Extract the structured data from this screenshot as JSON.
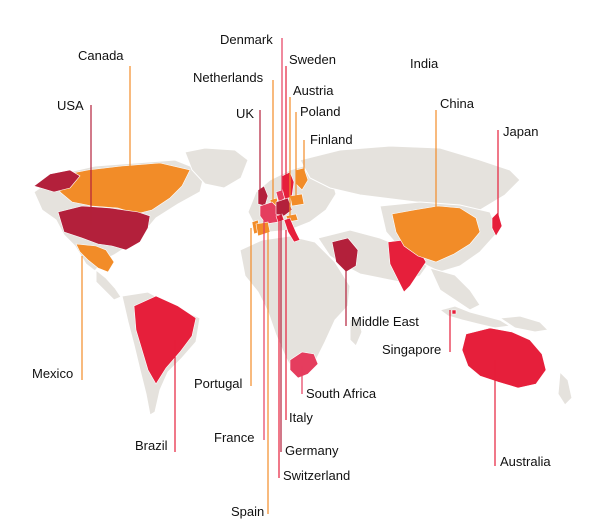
{
  "colors": {
    "background": "#ffffff",
    "land": "#e5e2dd",
    "orange": "#f28c28",
    "red": "#e61f3b",
    "dark_red": "#b3203b",
    "pink": "#e53d5e"
  },
  "countries": [
    {
      "id": "canada",
      "name": "Canada",
      "color": "#f28c28"
    },
    {
      "id": "usa",
      "name": "USA",
      "color": "#b3203b"
    },
    {
      "id": "mexico",
      "name": "Mexico",
      "color": "#f28c28"
    },
    {
      "id": "brazil",
      "name": "Brazil",
      "color": "#e61f3b"
    },
    {
      "id": "denmark",
      "name": "Denmark",
      "color": "#e53d5e"
    },
    {
      "id": "sweden",
      "name": "Sweden",
      "color": "#e61f3b"
    },
    {
      "id": "netherlands",
      "name": "Netherlands",
      "color": "#f28c28"
    },
    {
      "id": "austria",
      "name": "Austria",
      "color": "#f28c28"
    },
    {
      "id": "uk",
      "name": "UK",
      "color": "#b3203b"
    },
    {
      "id": "poland",
      "name": "Poland",
      "color": "#f28c28"
    },
    {
      "id": "finland",
      "name": "Finland",
      "color": "#f28c28"
    },
    {
      "id": "india",
      "name": "India",
      "color": "#e61f3b"
    },
    {
      "id": "china",
      "name": "China",
      "color": "#f28c28"
    },
    {
      "id": "japan",
      "name": "Japan",
      "color": "#e61f3b"
    },
    {
      "id": "middle-east",
      "name": "Middle East",
      "color": "#b3203b"
    },
    {
      "id": "singapore",
      "name": "Singapore",
      "color": "#e61f3b"
    },
    {
      "id": "portugal",
      "name": "Portugal",
      "color": "#f28c28"
    },
    {
      "id": "south-africa",
      "name": "South Africa",
      "color": "#e53d5e"
    },
    {
      "id": "italy",
      "name": "Italy",
      "color": "#e61f3b"
    },
    {
      "id": "france",
      "name": "France",
      "color": "#e53d5e"
    },
    {
      "id": "germany",
      "name": "Germany",
      "color": "#b3203b"
    },
    {
      "id": "switzerland",
      "name": "Switzerland",
      "color": "#e61f3b"
    },
    {
      "id": "spain",
      "name": "Spain",
      "color": "#f28c28"
    },
    {
      "id": "australia",
      "name": "Australia",
      "color": "#e61f3b"
    }
  ]
}
